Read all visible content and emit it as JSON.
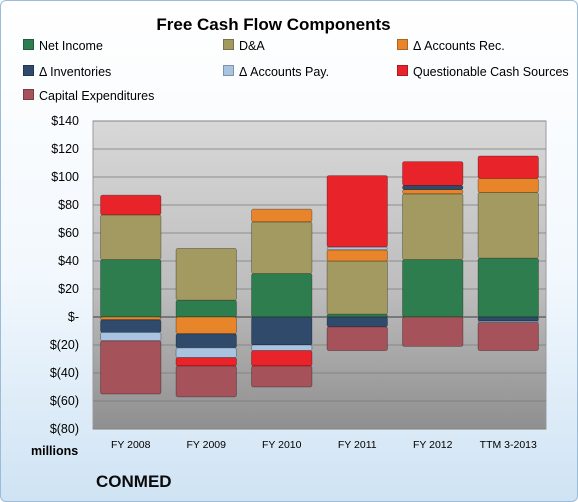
{
  "chart_data": {
    "type": "bar",
    "stacked": true,
    "title": "Free Cash Flow Components",
    "unit_label": "millions",
    "company": "CONMED",
    "categories": [
      "FY 2008",
      "FY 2009",
      "FY 2010",
      "FY 2011",
      "FY 2012",
      "TTM 3-2013"
    ],
    "y_ticks": [
      "$140",
      "$120",
      "$100",
      "$80",
      "$60",
      "$40",
      "$20",
      "$-",
      "$(20)",
      "$(40)",
      "$(60)",
      "$(80)"
    ],
    "ylim": [
      -80,
      140
    ],
    "grid": true,
    "legend_position": "top",
    "series": [
      {
        "name": "Net Income",
        "color": "#2e7d4f",
        "values": [
          41,
          12,
          31,
          2,
          41,
          42
        ]
      },
      {
        "name": "D&A",
        "color": "#a39a62",
        "values": [
          32,
          37,
          37,
          38,
          47,
          47
        ]
      },
      {
        "name": "Δ Accounts Rec.",
        "color": "#e8842a",
        "values": [
          -2,
          -12,
          9,
          8,
          3,
          10
        ]
      },
      {
        "name": "Δ Inventories",
        "color": "#2f4a6b",
        "values": [
          -9,
          -10,
          -20,
          -7,
          3,
          -3
        ]
      },
      {
        "name": "Δ Accounts Pay.",
        "color": "#a8c4e0",
        "values": [
          -6,
          -7,
          -4,
          2,
          0,
          -1
        ]
      },
      {
        "name": "Questionable Cash Sources",
        "color": "#e8232a",
        "values": [
          14,
          -6,
          -11,
          51,
          17,
          16
        ]
      },
      {
        "name": "Capital Expenditures",
        "color": "#a5525a",
        "values": [
          -38,
          -22,
          -15,
          -17,
          -21,
          -20
        ]
      }
    ]
  }
}
